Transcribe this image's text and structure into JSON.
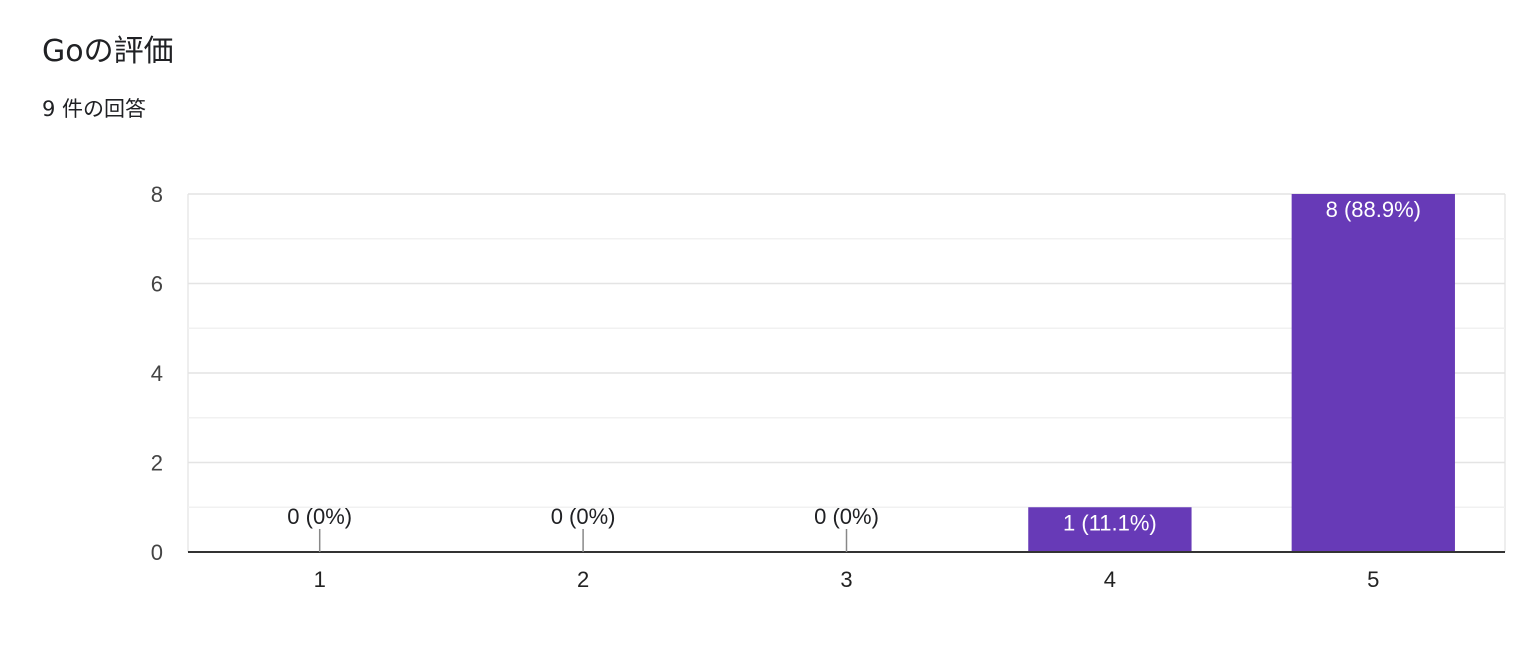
{
  "header": {
    "title": "Goの評価",
    "subtitle": "9 件の回答"
  },
  "chart_data": {
    "type": "bar",
    "categories": [
      "1",
      "2",
      "3",
      "4",
      "5"
    ],
    "values": [
      0,
      0,
      0,
      1,
      8
    ],
    "data_labels": [
      "0 (0%)",
      "0 (0%)",
      "0 (0%)",
      "1 (11.1%)",
      "8 (88.9%)"
    ],
    "ylim": [
      0,
      8
    ],
    "yticks": [
      0,
      2,
      4,
      6,
      8
    ],
    "grid": true,
    "bar_color": "#673ab7",
    "label_color_inside": "#ffffff",
    "label_color_outside": "#202124",
    "gridline_color": "#e8e8e8",
    "axis_color": "#333333"
  }
}
